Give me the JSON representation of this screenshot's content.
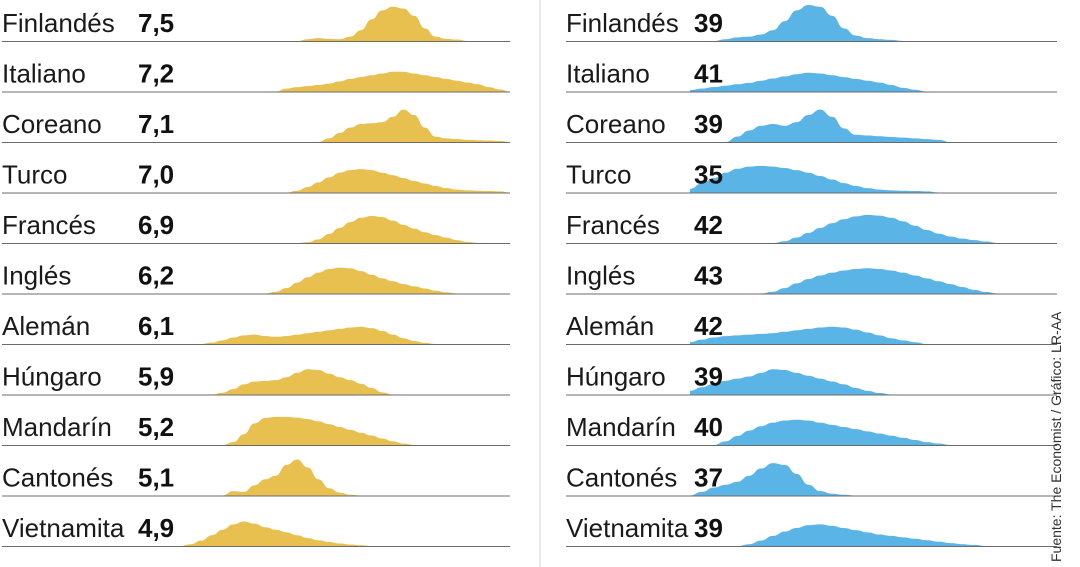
{
  "source": "Fuente: The Economist / Gráfico: LR-AA",
  "colors": {
    "left": "#e8c050",
    "right": "#5ab4e6",
    "baseline": "#6b6b6b",
    "divider": "#cfcfcf"
  },
  "chart_data": [
    {
      "type": "area",
      "panel": "left",
      "rows": [
        {
          "language": "Finlandés",
          "value": "7,5",
          "density": [
            0,
            0,
            0,
            0,
            0,
            0,
            0,
            0,
            0,
            0,
            0,
            0,
            0.05,
            0.08,
            0.06,
            0.05,
            0.12,
            0.3,
            0.6,
            0.85,
            0.95,
            0.9,
            0.7,
            0.35,
            0.12,
            0.06,
            0.04,
            0,
            0,
            0,
            0,
            0
          ]
        },
        {
          "language": "Italiano",
          "value": "7,2",
          "density": [
            0,
            0,
            0,
            0,
            0,
            0,
            0,
            0,
            0,
            0,
            0.08,
            0.12,
            0.15,
            0.18,
            0.22,
            0.28,
            0.35,
            0.4,
            0.45,
            0.5,
            0.55,
            0.55,
            0.5,
            0.45,
            0.4,
            0.35,
            0.3,
            0.25,
            0.2,
            0.12,
            0.06,
            0
          ]
        },
        {
          "language": "Coreano",
          "value": "7,1",
          "density": [
            0,
            0,
            0,
            0,
            0,
            0,
            0,
            0,
            0,
            0,
            0,
            0,
            0,
            0,
            0.1,
            0.25,
            0.4,
            0.5,
            0.52,
            0.55,
            0.7,
            0.9,
            0.75,
            0.4,
            0.15,
            0.1,
            0.08,
            0.06,
            0.05,
            0.04,
            0.03,
            0
          ]
        },
        {
          "language": "Turco",
          "value": "7,0",
          "density": [
            0,
            0,
            0,
            0,
            0,
            0,
            0,
            0,
            0,
            0,
            0,
            0.05,
            0.15,
            0.28,
            0.42,
            0.55,
            0.62,
            0.65,
            0.62,
            0.55,
            0.48,
            0.4,
            0.32,
            0.25,
            0.18,
            0.12,
            0.08,
            0.06,
            0.05,
            0.04,
            0.03,
            0
          ]
        },
        {
          "language": "Francés",
          "value": "6,9",
          "density": [
            0,
            0,
            0,
            0,
            0,
            0,
            0,
            0,
            0,
            0,
            0,
            0,
            0.02,
            0.1,
            0.25,
            0.42,
            0.58,
            0.7,
            0.75,
            0.72,
            0.62,
            0.5,
            0.4,
            0.3,
            0.22,
            0.15,
            0.08,
            0.03,
            0,
            0,
            0,
            0
          ]
        },
        {
          "language": "Inglés",
          "value": "6,2",
          "density": [
            0,
            0,
            0,
            0,
            0,
            0,
            0,
            0,
            0,
            0.05,
            0.15,
            0.3,
            0.45,
            0.58,
            0.68,
            0.72,
            0.7,
            0.62,
            0.52,
            0.42,
            0.34,
            0.26,
            0.2,
            0.14,
            0.08,
            0.03,
            0,
            0,
            0,
            0,
            0,
            0
          ]
        },
        {
          "language": "Alemán",
          "value": "6,1",
          "density": [
            0,
            0,
            0,
            0.04,
            0.1,
            0.18,
            0.24,
            0.26,
            0.22,
            0.2,
            0.22,
            0.26,
            0.3,
            0.34,
            0.38,
            0.42,
            0.46,
            0.48,
            0.44,
            0.36,
            0.26,
            0.16,
            0.08,
            0.03,
            0,
            0,
            0,
            0,
            0,
            0,
            0,
            0
          ]
        },
        {
          "language": "Húngaro",
          "value": "5,9",
          "density": [
            0,
            0,
            0,
            0,
            0.05,
            0.15,
            0.28,
            0.36,
            0.38,
            0.4,
            0.48,
            0.6,
            0.7,
            0.68,
            0.58,
            0.48,
            0.4,
            0.3,
            0.18,
            0.06,
            0,
            0,
            0,
            0,
            0,
            0,
            0,
            0,
            0,
            0,
            0,
            0
          ]
        },
        {
          "language": "Mandarín",
          "value": "5,2",
          "density": [
            0,
            0,
            0,
            0,
            0,
            0.08,
            0.3,
            0.6,
            0.75,
            0.78,
            0.78,
            0.76,
            0.72,
            0.66,
            0.58,
            0.5,
            0.42,
            0.34,
            0.26,
            0.18,
            0.1,
            0.04,
            0,
            0,
            0,
            0,
            0,
            0,
            0,
            0,
            0,
            0
          ]
        },
        {
          "language": "Cantonés",
          "value": "5,1",
          "density": [
            0,
            0,
            0,
            0,
            0,
            0.12,
            0.1,
            0.28,
            0.45,
            0.55,
            0.85,
            1.0,
            0.78,
            0.45,
            0.2,
            0.08,
            0.02,
            0,
            0,
            0,
            0,
            0,
            0,
            0,
            0,
            0,
            0,
            0,
            0,
            0,
            0,
            0
          ]
        },
        {
          "language": "Vietnamita",
          "value": "4,9",
          "density": [
            0,
            0.05,
            0.15,
            0.3,
            0.45,
            0.6,
            0.68,
            0.62,
            0.52,
            0.45,
            0.38,
            0.3,
            0.22,
            0.16,
            0.11,
            0.07,
            0.04,
            0.02,
            0,
            0,
            0,
            0,
            0,
            0,
            0,
            0,
            0,
            0,
            0,
            0,
            0,
            0
          ]
        }
      ]
    },
    {
      "type": "area",
      "panel": "right",
      "rows": [
        {
          "language": "Finlandés",
          "value": "39",
          "density": [
            0,
            0,
            0,
            0.05,
            0.1,
            0.12,
            0.18,
            0.3,
            0.55,
            0.85,
            1.0,
            0.95,
            0.7,
            0.35,
            0.15,
            0.08,
            0.05,
            0.03,
            0,
            0,
            0,
            0,
            0,
            0,
            0,
            0,
            0,
            0,
            0,
            0,
            0,
            0
          ]
        },
        {
          "language": "Italiano",
          "value": "41",
          "density": [
            0.04,
            0.08,
            0.12,
            0.16,
            0.2,
            0.24,
            0.3,
            0.36,
            0.42,
            0.48,
            0.52,
            0.5,
            0.45,
            0.4,
            0.35,
            0.3,
            0.25,
            0.18,
            0.1,
            0.05,
            0,
            0,
            0,
            0,
            0,
            0,
            0,
            0,
            0,
            0,
            0,
            0
          ]
        },
        {
          "language": "Coreano",
          "value": "39",
          "density": [
            0,
            0,
            0,
            0,
            0.15,
            0.32,
            0.45,
            0.5,
            0.45,
            0.55,
            0.75,
            0.9,
            0.7,
            0.38,
            0.2,
            0.18,
            0.16,
            0.14,
            0.12,
            0.1,
            0.08,
            0.06,
            0,
            0,
            0,
            0,
            0,
            0,
            0,
            0,
            0,
            0
          ]
        },
        {
          "language": "Turco",
          "value": "35",
          "density": [
            0.1,
            0.25,
            0.4,
            0.55,
            0.66,
            0.72,
            0.74,
            0.72,
            0.68,
            0.62,
            0.55,
            0.46,
            0.36,
            0.26,
            0.18,
            0.12,
            0.08,
            0.06,
            0.05,
            0.04,
            0.03,
            0,
            0,
            0,
            0,
            0,
            0,
            0,
            0,
            0,
            0,
            0
          ]
        },
        {
          "language": "Francés",
          "value": "42",
          "density": [
            0,
            0,
            0,
            0,
            0,
            0,
            0,
            0,
            0.05,
            0.15,
            0.28,
            0.42,
            0.55,
            0.66,
            0.74,
            0.78,
            0.76,
            0.7,
            0.6,
            0.48,
            0.36,
            0.26,
            0.18,
            0.12,
            0.08,
            0.04,
            0,
            0,
            0,
            0,
            0,
            0
          ]
        },
        {
          "language": "Inglés",
          "value": "43",
          "density": [
            0,
            0,
            0,
            0,
            0,
            0,
            0,
            0.05,
            0.15,
            0.28,
            0.4,
            0.5,
            0.58,
            0.64,
            0.68,
            0.7,
            0.68,
            0.64,
            0.58,
            0.5,
            0.42,
            0.34,
            0.26,
            0.18,
            0.1,
            0.04,
            0,
            0,
            0,
            0,
            0,
            0
          ]
        },
        {
          "language": "Alemán",
          "value": "42",
          "density": [
            0.05,
            0.12,
            0.18,
            0.22,
            0.24,
            0.26,
            0.28,
            0.3,
            0.34,
            0.38,
            0.42,
            0.46,
            0.48,
            0.46,
            0.4,
            0.32,
            0.24,
            0.16,
            0.1,
            0.05,
            0,
            0,
            0,
            0,
            0,
            0,
            0,
            0,
            0,
            0,
            0,
            0
          ]
        },
        {
          "language": "Húngaro",
          "value": "39",
          "density": [
            0.1,
            0.2,
            0.3,
            0.38,
            0.44,
            0.5,
            0.6,
            0.7,
            0.68,
            0.6,
            0.52,
            0.44,
            0.36,
            0.28,
            0.18,
            0.1,
            0.04,
            0,
            0,
            0,
            0,
            0,
            0,
            0,
            0,
            0,
            0,
            0,
            0,
            0,
            0,
            0
          ]
        },
        {
          "language": "Mandarín",
          "value": "40",
          "density": [
            0,
            0,
            0,
            0.1,
            0.25,
            0.4,
            0.52,
            0.62,
            0.68,
            0.7,
            0.68,
            0.62,
            0.56,
            0.5,
            0.44,
            0.38,
            0.32,
            0.26,
            0.2,
            0.14,
            0.08,
            0.04,
            0,
            0,
            0,
            0,
            0,
            0,
            0,
            0,
            0,
            0
          ]
        },
        {
          "language": "Cantonés",
          "value": "37",
          "density": [
            0,
            0.1,
            0.22,
            0.3,
            0.38,
            0.55,
            0.75,
            0.9,
            0.85,
            0.6,
            0.3,
            0.12,
            0.05,
            0.02,
            0,
            0,
            0,
            0,
            0,
            0,
            0,
            0,
            0,
            0,
            0,
            0,
            0,
            0,
            0,
            0,
            0,
            0
          ]
        },
        {
          "language": "Vietnamita",
          "value": "39",
          "density": [
            0,
            0,
            0,
            0,
            0,
            0.05,
            0.15,
            0.28,
            0.4,
            0.5,
            0.58,
            0.6,
            0.56,
            0.5,
            0.44,
            0.38,
            0.32,
            0.28,
            0.24,
            0.2,
            0.16,
            0.12,
            0.08,
            0.05,
            0.03,
            0,
            0,
            0,
            0,
            0,
            0,
            0
          ]
        }
      ]
    }
  ]
}
